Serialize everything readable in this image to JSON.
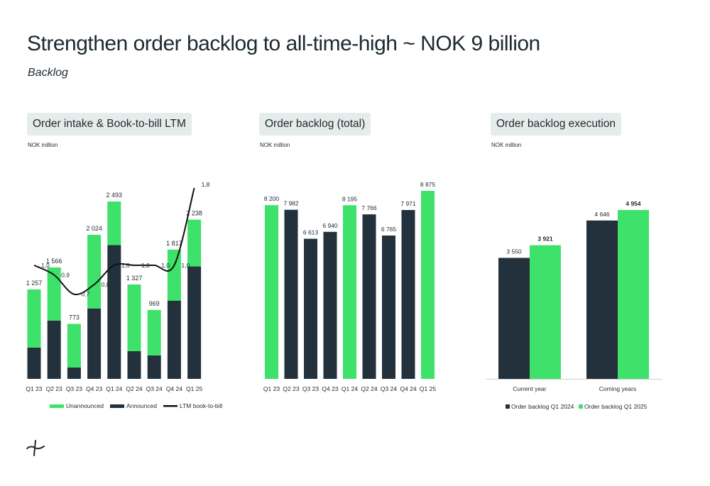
{
  "page": {
    "title": "Strengthen order backlog to all-time-high ~ NOK 9 billion",
    "subtitle": "Backlog"
  },
  "colors": {
    "green": "#3ee26a",
    "navy": "#22313b",
    "line": "#111111",
    "text": "#1d2930"
  },
  "panels": [
    {
      "title": "Order intake & Book-to-bill LTM",
      "unit": "NOK million"
    },
    {
      "title": "Order backlog (total)",
      "unit": "NOK million"
    },
    {
      "title": "Order backlog execution",
      "unit": "NOK million"
    }
  ],
  "chart_data": [
    {
      "type": "bar",
      "stacked": true,
      "categories": [
        "Q1 23",
        "Q2 23",
        "Q3 23",
        "Q4 23",
        "Q1 24",
        "Q2 24",
        "Q3 24",
        "Q4 24",
        "Q1 25"
      ],
      "series": [
        {
          "name": "Announced",
          "values": [
            440,
            820,
            160,
            990,
            1880,
            390,
            330,
            1100,
            1580
          ]
        },
        {
          "name": "Unannounced",
          "values": [
            817,
            746,
            613,
            1034,
            613,
            937,
            639,
            717,
            658
          ]
        }
      ],
      "totals": [
        1257,
        1566,
        773,
        2024,
        2493,
        1327,
        969,
        1817,
        2238
      ],
      "total_labels": [
        "1 257",
        "1 566",
        "773",
        "2 024",
        "2 493",
        "1 327",
        "969",
        "1 817",
        "2 238"
      ],
      "line": {
        "name": "LTM book-to-bill",
        "values": [
          1.0,
          0.9,
          0.7,
          0.8,
          1.0,
          1.0,
          1.0,
          1.0,
          1.8
        ],
        "labels": [
          "1,0",
          "0,9",
          "0,7",
          "0,8",
          "1,0",
          "1,0",
          "1,0",
          "1,0",
          "1,8"
        ]
      },
      "legend": [
        "Unannounced",
        "Announced",
        "LTM book-to-bill"
      ],
      "legend_position": "bottom"
    },
    {
      "type": "bar",
      "categories": [
        "Q1 23",
        "Q2 23",
        "Q3 23",
        "Q4 23",
        "Q1 24",
        "Q2 24",
        "Q3 24",
        "Q4 24",
        "Q1 25"
      ],
      "values": [
        8200,
        7982,
        6613,
        6940,
        8195,
        7766,
        6765,
        7971,
        8875
      ],
      "labels": [
        "8 200",
        "7 982",
        "6 613",
        "6 940",
        "8 195",
        "7 766",
        "6 765",
        "7 971",
        "8 875"
      ],
      "color_keys": [
        "green",
        "navy",
        "navy",
        "navy",
        "green",
        "navy",
        "navy",
        "navy",
        "green"
      ]
    },
    {
      "type": "bar",
      "categories": [
        "Current year",
        "Coming years"
      ],
      "series": [
        {
          "name": "Order backlog Q1 2024",
          "values": [
            3550,
            4646
          ],
          "labels": [
            "3 550",
            "4 646"
          ]
        },
        {
          "name": "Order backlog Q1 2025",
          "values": [
            3921,
            4954
          ],
          "labels": [
            "3 921",
            "4 954"
          ]
        }
      ],
      "legend_position": "bottom"
    }
  ]
}
